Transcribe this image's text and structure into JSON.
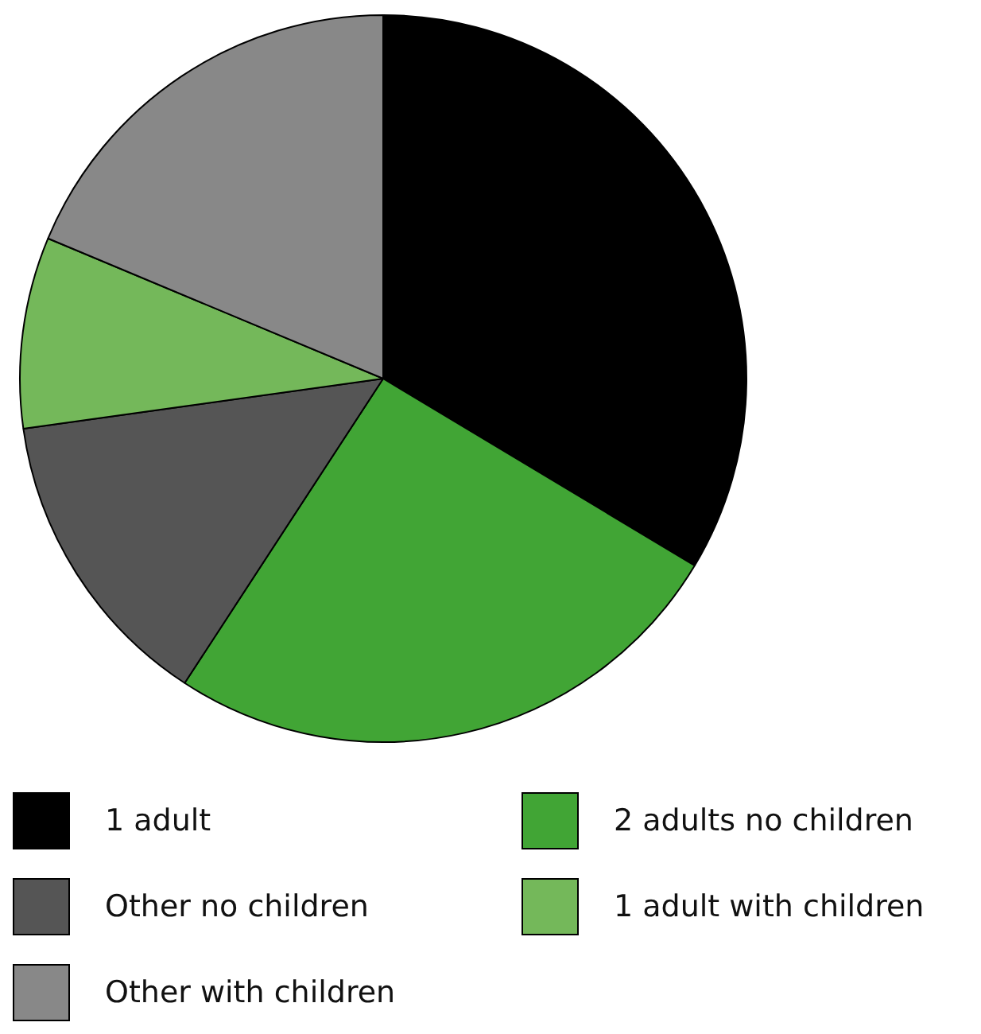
{
  "chart_data": {
    "type": "pie",
    "categories": [
      "1 adult",
      "2 adults no children",
      "Other no children",
      "1 adult with children",
      "Other with children"
    ],
    "values": [
      33.6,
      25.6,
      13.6,
      8.5,
      18.7
    ],
    "colors": [
      "#000000",
      "#41a535",
      "#555555",
      "#74b85a",
      "#888888"
    ],
    "legend": "bottom"
  }
}
